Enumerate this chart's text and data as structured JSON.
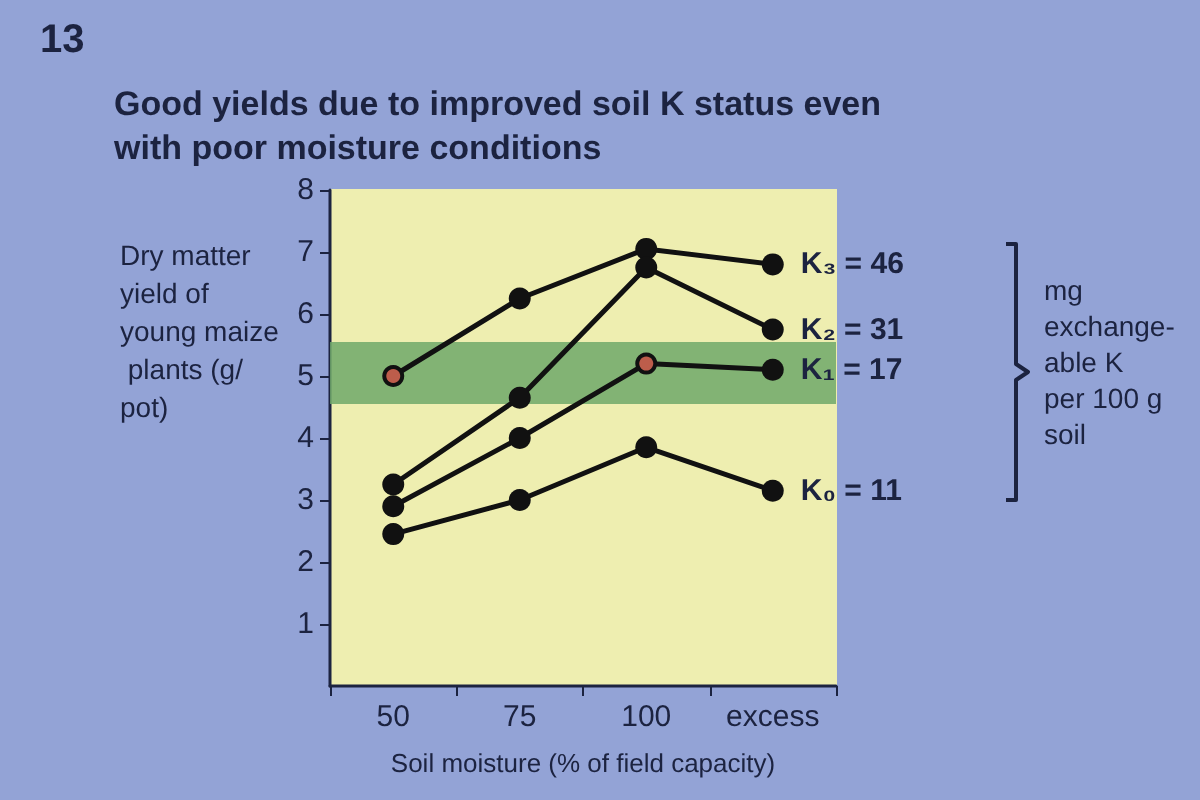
{
  "chart_data": {
    "type": "line",
    "title": "Good yields due to improved soil K status even with poor moisture conditions",
    "xlabel": "Soil moisture (% of field capacity)",
    "ylabel": "Dry matter yield of young maize plants (g/pot)",
    "annotations": [
      "13",
      "mg\nexchange-\nable K\nper 100 g\nsoil"
    ],
    "categories": [
      "50",
      "75",
      "100",
      "excess"
    ],
    "series": [
      {
        "name": "K₃ = 46",
        "color": "#111111",
        "values": [
          5.0,
          6.25,
          7.05,
          6.8
        ]
      },
      {
        "name": "K₂ = 31",
        "color": "#111111",
        "values": [
          3.25,
          4.65,
          6.75,
          5.75
        ]
      },
      {
        "name": "K₁ = 17",
        "color": "#111111",
        "values": [
          2.9,
          4.0,
          5.2,
          5.1
        ]
      },
      {
        "name": "K₀ = 11",
        "color": "#111111",
        "values": [
          2.45,
          3.0,
          3.85,
          3.15
        ]
      },
      {
        "type": "scatter",
        "color": "#e8705a",
        "x": [
          "50",
          "100"
        ],
        "values": [
          5.0,
          5.2
        ]
      }
    ],
    "bands": [
      {
        "axis": "y",
        "from": 4.55,
        "to": 5.55,
        "color": "#6ea86a"
      }
    ],
    "ylim": [
      0,
      8
    ],
    "yticks": [
      1,
      2,
      3,
      4,
      5,
      6,
      7,
      8
    ],
    "grid": false,
    "legend": false,
    "marker": "circle",
    "line_style": "solid"
  }
}
